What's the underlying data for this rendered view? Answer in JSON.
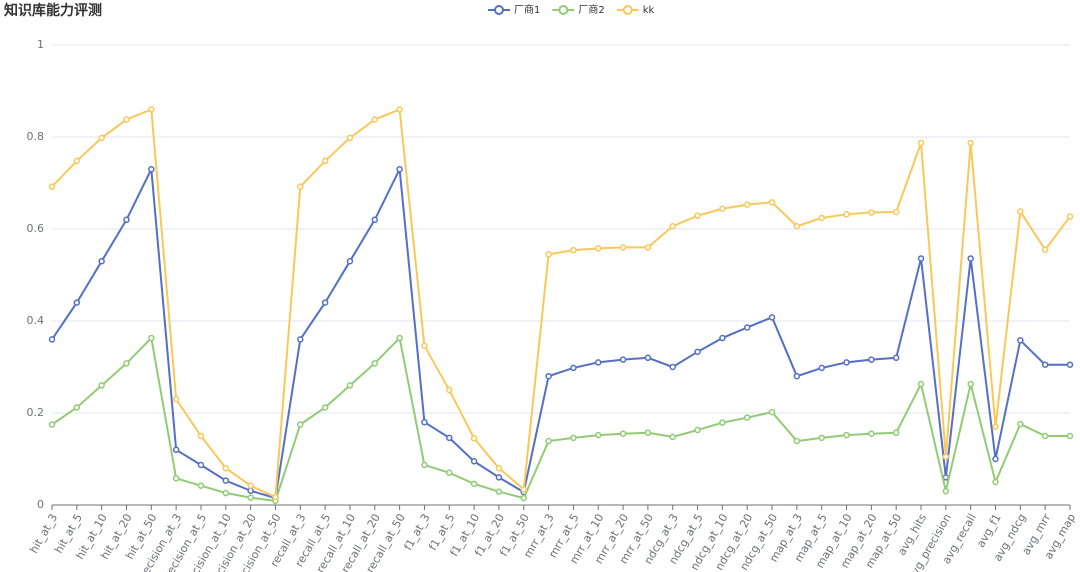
{
  "chart_data": {
    "type": "line",
    "title": "知识库能力评测",
    "categories": [
      "hit_at_3",
      "hit_at_5",
      "hit_at_10",
      "hit_at_20",
      "hit_at_50",
      "precision_at_3",
      "precision_at_5",
      "precision_at_10",
      "precision_at_20",
      "precision_at_50",
      "recall_at_3",
      "recall_at_5",
      "recall_at_10",
      "recall_at_20",
      "recall_at_50",
      "f1_at_3",
      "f1_at_5",
      "f1_at_10",
      "f1_at_20",
      "f1_at_50",
      "mrr_at_3",
      "mrr_at_5",
      "mrr_at_10",
      "mrr_at_20",
      "mrr_at_50",
      "ndcg_at_3",
      "ndcg_at_5",
      "ndcg_at_10",
      "ndcg_at_20",
      "ndcg_at_50",
      "map_at_3",
      "map_at_5",
      "map_at_10",
      "map_at_20",
      "map_at_50",
      "avg_hits",
      "avg_precision",
      "avg_recall",
      "avg_f1",
      "avg_ndcg",
      "avg_mrr",
      "avg_map"
    ],
    "series": [
      {
        "name": "厂商1",
        "color": "#5470c6",
        "values": [
          0.36,
          0.44,
          0.53,
          0.62,
          0.73,
          0.12,
          0.087,
          0.053,
          0.031,
          0.015,
          0.36,
          0.44,
          0.53,
          0.62,
          0.73,
          0.18,
          0.146,
          0.095,
          0.06,
          0.028,
          0.28,
          0.298,
          0.31,
          0.316,
          0.32,
          0.3,
          0.333,
          0.363,
          0.386,
          0.408,
          0.28,
          0.298,
          0.31,
          0.316,
          0.32,
          0.536,
          0.06,
          0.536,
          0.1,
          0.358,
          0.305,
          0.305
        ]
      },
      {
        "name": "厂商2",
        "color": "#91cc75",
        "values": [
          0.175,
          0.212,
          0.26,
          0.308,
          0.363,
          0.058,
          0.042,
          0.026,
          0.016,
          0.009,
          0.175,
          0.212,
          0.26,
          0.308,
          0.363,
          0.087,
          0.07,
          0.046,
          0.029,
          0.015,
          0.139,
          0.146,
          0.152,
          0.155,
          0.157,
          0.148,
          0.163,
          0.179,
          0.19,
          0.202,
          0.139,
          0.146,
          0.152,
          0.155,
          0.157,
          0.263,
          0.03,
          0.263,
          0.05,
          0.176,
          0.15,
          0.15
        ]
      },
      {
        "name": "kk",
        "color": "#fac858",
        "values": [
          0.692,
          0.748,
          0.798,
          0.838,
          0.86,
          0.23,
          0.15,
          0.08,
          0.042,
          0.017,
          0.692,
          0.748,
          0.798,
          0.838,
          0.86,
          0.346,
          0.25,
          0.145,
          0.08,
          0.034,
          0.545,
          0.554,
          0.558,
          0.56,
          0.56,
          0.606,
          0.629,
          0.644,
          0.653,
          0.658,
          0.606,
          0.624,
          0.632,
          0.636,
          0.637,
          0.787,
          0.105,
          0.787,
          0.17,
          0.638,
          0.555,
          0.627
        ]
      }
    ],
    "ylim": [
      0,
      1
    ],
    "yticks": [
      0,
      0.2,
      0.4,
      0.6,
      0.8,
      1
    ],
    "grid": true
  }
}
